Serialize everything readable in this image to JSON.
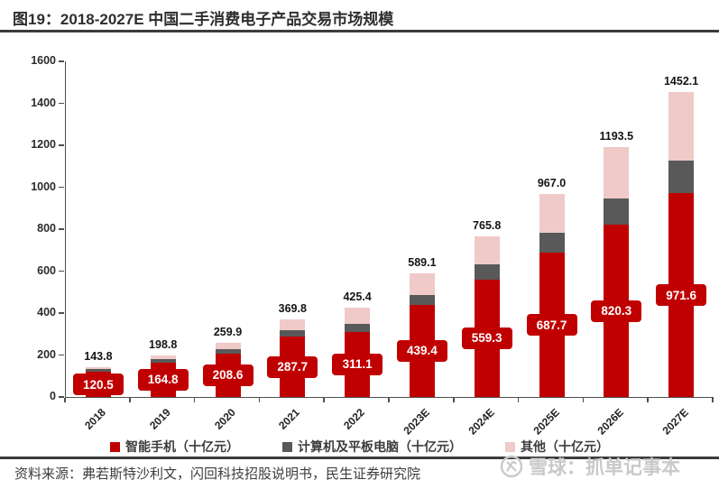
{
  "header": {
    "title": "图19：2018-2027E 中国二手消费电子产品交易市场规模"
  },
  "chart_data": {
    "type": "bar",
    "stacked": true,
    "title": "2018-2027E 中国二手消费电子产品交易市场规模",
    "categories": [
      "2018",
      "2019",
      "2020",
      "2021",
      "2022",
      "2023E",
      "2024E",
      "2025E",
      "2026E",
      "2027E"
    ],
    "series": [
      {
        "name": "智能手机（十亿元）",
        "color": "#C00000",
        "values": [
          "120.5",
          "164.8",
          "208.6",
          "287.7",
          "311.1",
          "439.4",
          "559.3",
          "687.7",
          "820.3",
          "971.6"
        ],
        "labeled": true
      },
      {
        "name": "计算机及平板电脑（十亿元）",
        "color": "#595959",
        "estimated": true,
        "values": [
          11.6,
          14.0,
          20.0,
          32.0,
          39.0,
          48.0,
          73.0,
          97.0,
          127.0,
          157.0
        ]
      },
      {
        "name": "其他（十亿元）",
        "color": "#EFCAC8",
        "estimated": true,
        "values": [
          11.7,
          20.0,
          31.3,
          50.1,
          75.3,
          101.7,
          133.5,
          182.3,
          246.2,
          323.5
        ]
      }
    ],
    "totals": [
      "143.8",
      "198.8",
      "259.9",
      "369.8",
      "425.4",
      "589.1",
      "765.8",
      "967.0",
      "1193.5",
      "1452.1"
    ],
    "ylim": [
      0,
      1600
    ],
    "yticks": [
      "0",
      "200",
      "400",
      "600",
      "800",
      "1000",
      "1200",
      "1400",
      "1600"
    ],
    "grid": false,
    "legend_position": "bottom"
  },
  "footer": {
    "source": "资料来源：弗若斯特沙利文，闪回科技招股说明书，民生证券研究院"
  },
  "watermark": {
    "logo": "xueqiu-icon",
    "text": "雪球：抓单记事本"
  }
}
